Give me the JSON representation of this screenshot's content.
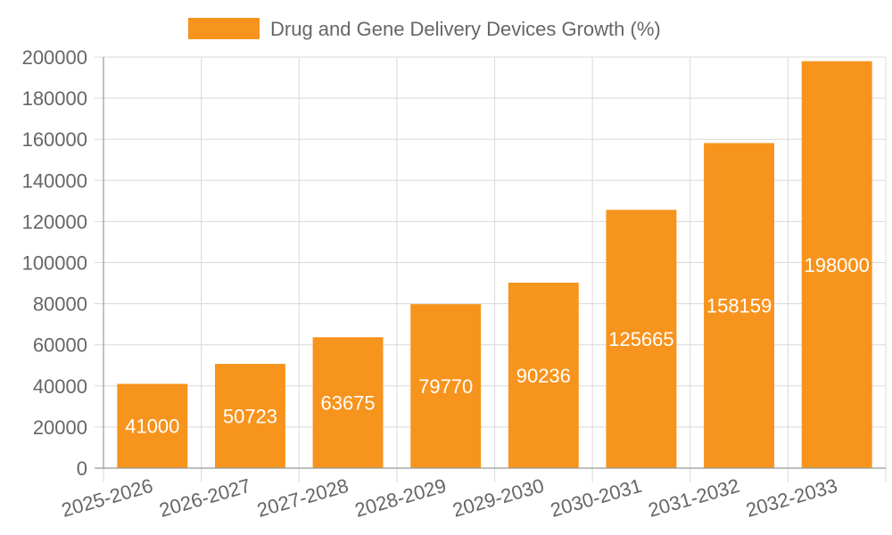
{
  "chart_data": {
    "type": "bar",
    "categories": [
      "2025-2026",
      "2026-2027",
      "2027-2028",
      "2028-2029",
      "2029-2030",
      "2030-2031",
      "2031-2032",
      "2032-2033"
    ],
    "series": [
      {
        "name": "Drug and Gene Delivery Devices Growth (%)",
        "values": [
          41000,
          50723,
          63675,
          79770,
          90236,
          125665,
          158159,
          198000
        ]
      }
    ],
    "ylim": [
      0,
      200000
    ],
    "y_ticks": [
      0,
      20000,
      40000,
      60000,
      80000,
      100000,
      120000,
      140000,
      160000,
      180000,
      200000
    ],
    "grid": true,
    "legend_position": "top",
    "data_labels": true,
    "colors": {
      "bar": "#f7941d",
      "label": "#ffffff",
      "grid": "#d9d9d9",
      "text": "#666666"
    }
  }
}
